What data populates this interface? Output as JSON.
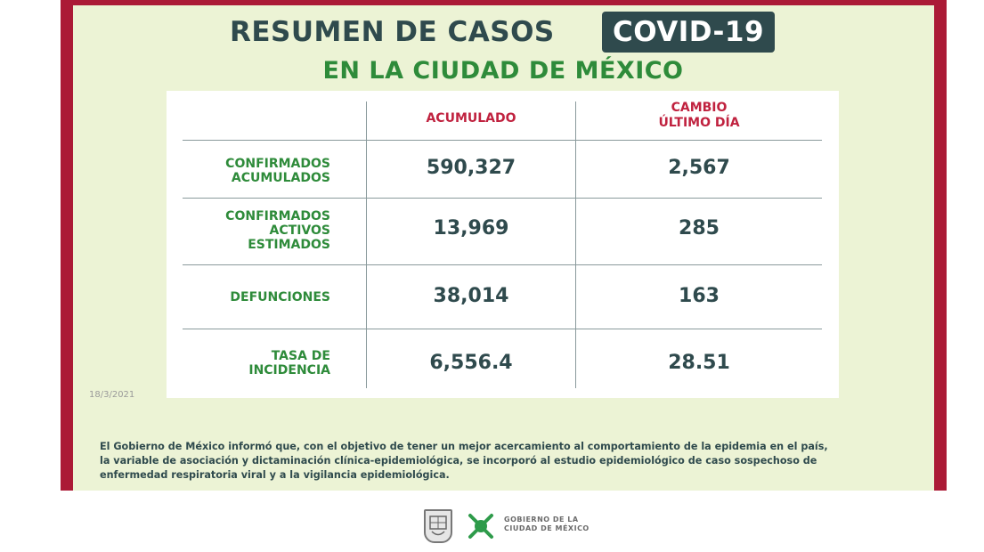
{
  "header": {
    "title_line1": "RESUMEN DE CASOS",
    "badge": "COVID-19",
    "title_line2": "EN LA CIUDAD DE MÉXICO"
  },
  "table": {
    "col_acumulado": "ACUMULADO",
    "col_cambio_1": "CAMBIO",
    "col_cambio_2": "ÚLTIMO DÍA",
    "rows": [
      {
        "label": [
          "CONFIRMADOS",
          "ACUMULADOS"
        ],
        "acumulado": "590,327",
        "cambio": "2,567"
      },
      {
        "label": [
          "CONFIRMADOS",
          "ACTIVOS",
          "ESTIMADOS"
        ],
        "acumulado": "13,969",
        "cambio": "285"
      },
      {
        "label": [
          "DEFUNCIONES"
        ],
        "acumulado": "38,014",
        "cambio": "163"
      },
      {
        "label": [
          "TASA DE",
          "INCIDENCIA"
        ],
        "acumulado": "6,556.4",
        "cambio": "28.51"
      }
    ]
  },
  "date": "18/3/2021",
  "note": [
    "El Gobierno de México informó que, con el objetivo de tener un mejor acercamiento al comportamiento de la epidemia en el país,",
    "la variable de asociación y dictaminación clínica-epidemiológica, se incorporó al estudio epidemiológico de caso sospechoso de",
    "enfermedad respiratoria viral y a la vigilancia epidemiológica."
  ],
  "footer": {
    "logo_line1": "GOBIERNO DE LA",
    "logo_line2": "CIUDAD DE MÉXICO",
    "shield_icon": "coat-of-arms-icon",
    "mark_icon": "cdmx-logo-icon"
  },
  "colors": {
    "frame": "#ab1a36",
    "panel": "#ecf3d5",
    "dark": "#2f4a4d",
    "green": "#2e8b3a",
    "red": "#c0223f"
  }
}
